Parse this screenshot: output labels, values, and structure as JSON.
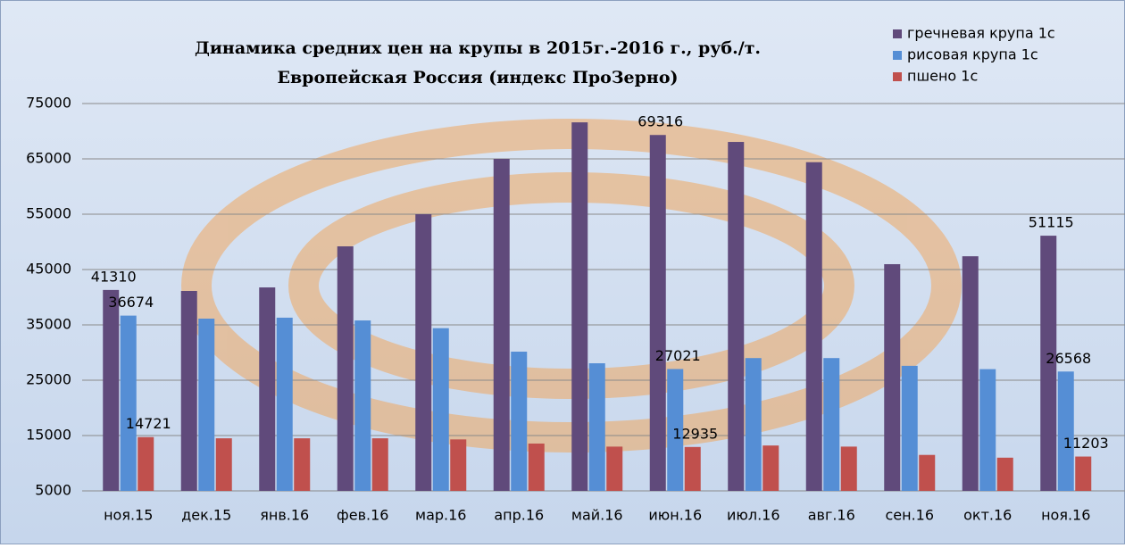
{
  "chart_data": {
    "type": "bar",
    "title": "Динамика средних цен на крупы в 2015г.-2016 г., руб./т.",
    "subtitle": "Европейская Россия (индекс ПроЗерно)",
    "categories": [
      "ноя.15",
      "дек.15",
      "янв.16",
      "фев.16",
      "мар.16",
      "апр.16",
      "май.16",
      "июн.16",
      "июл.16",
      "авг.16",
      "сен.16",
      "окт.16",
      "ноя.16"
    ],
    "series": [
      {
        "name": "гречневая крупа 1с",
        "color": "#604a7b",
        "values": [
          41310,
          41130,
          41770,
          49190,
          55000,
          65000,
          71600,
          69316,
          68060,
          64400,
          45970,
          47400,
          51115
        ],
        "value_labels": [
          "41310",
          null,
          null,
          null,
          null,
          null,
          null,
          "69316",
          null,
          null,
          null,
          null,
          "51115"
        ]
      },
      {
        "name": "рисовая крупа 1с",
        "color": "#558ed5",
        "values": [
          36674,
          36130,
          36300,
          35800,
          34400,
          30160,
          28060,
          27021,
          29000,
          29000,
          27600,
          27000,
          26568
        ],
        "value_labels": [
          "36674",
          null,
          null,
          null,
          null,
          null,
          null,
          "27021",
          null,
          null,
          null,
          null,
          "26568"
        ]
      },
      {
        "name": "пшено 1с",
        "color": "#c0504d",
        "values": [
          14721,
          14500,
          14500,
          14500,
          14300,
          13550,
          13000,
          12935,
          13200,
          13000,
          11500,
          11000,
          11203
        ],
        "value_labels": [
          "14721",
          null,
          null,
          null,
          null,
          null,
          null,
          "12935",
          null,
          null,
          null,
          null,
          "11203"
        ]
      }
    ],
    "ylim": [
      5000,
      75000
    ],
    "yticks": [
      5000,
      15000,
      25000,
      35000,
      45000,
      55000,
      65000,
      75000
    ],
    "grid": true,
    "legend": "top-right"
  }
}
